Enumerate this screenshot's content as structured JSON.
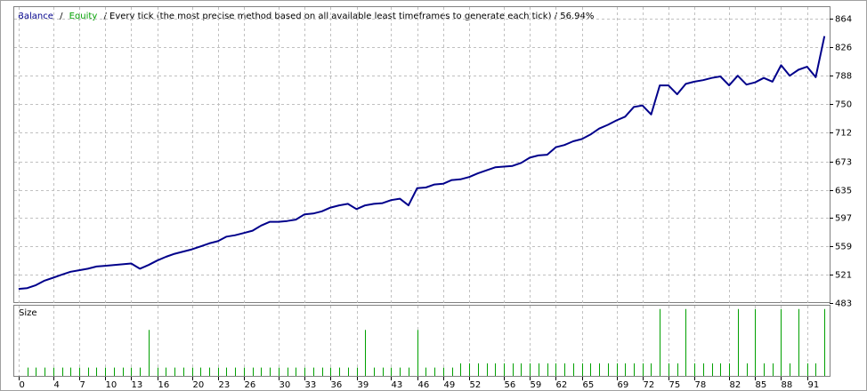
{
  "chart_data": [
    {
      "type": "line",
      "legend": {
        "separator": "/",
        "extra": {
          "name": "Equity",
          "color": "#00a000"
        }
      },
      "subtitle": "/ Every tick (the most precise method based on all available least timeframes to generate each tick) / 56.94%",
      "series": [
        {
          "name": "Balance",
          "color": "#00008b",
          "values": [
            502,
            503,
            507,
            513,
            517,
            521,
            525,
            527,
            529,
            532,
            533,
            534,
            535,
            536,
            529,
            534,
            540,
            545,
            549,
            552,
            555,
            559,
            563,
            566,
            572,
            574,
            577,
            580,
            587,
            592,
            592,
            593,
            595,
            602,
            603,
            606,
            611,
            614,
            616,
            609,
            614,
            616,
            617,
            621,
            623,
            614,
            637,
            638,
            642,
            643,
            648,
            649,
            652,
            657,
            661,
            665,
            666,
            667,
            671,
            678,
            681,
            682,
            692,
            695,
            700,
            703,
            709,
            717,
            722,
            728,
            733,
            746,
            748,
            736,
            775,
            775,
            763,
            777,
            780,
            782,
            785,
            787,
            775,
            788,
            776,
            779,
            785,
            780,
            802,
            788,
            796,
            800,
            786,
            841
          ]
        }
      ],
      "x": [
        0,
        1,
        2,
        3,
        4,
        5,
        6,
        7,
        8,
        9,
        10,
        11,
        12,
        13,
        14,
        15,
        16,
        17,
        18,
        19,
        20,
        21,
        22,
        23,
        24,
        25,
        26,
        27,
        28,
        29,
        30,
        31,
        32,
        33,
        34,
        35,
        36,
        37,
        38,
        39,
        40,
        41,
        42,
        43,
        44,
        45,
        46,
        47,
        48,
        49,
        50,
        51,
        52,
        53,
        54,
        55,
        56,
        57,
        58,
        59,
        60,
        61,
        62,
        63,
        64,
        65,
        66,
        67,
        68,
        69,
        70,
        71,
        72,
        73,
        74,
        75,
        76,
        77,
        78,
        79,
        80,
        81,
        82,
        83,
        84,
        85,
        86,
        87,
        88,
        89,
        90,
        91,
        92,
        93
      ],
      "ylim": [
        483,
        880
      ],
      "yticks": [
        483,
        521,
        559,
        597,
        635,
        673,
        712,
        750,
        788,
        826,
        864
      ],
      "grid": true
    },
    {
      "type": "bar",
      "title": "Size",
      "color": "#00a000",
      "x": [
        1,
        2,
        3,
        4,
        5,
        6,
        7,
        8,
        9,
        10,
        11,
        12,
        13,
        14,
        15,
        16,
        17,
        18,
        19,
        20,
        21,
        22,
        23,
        24,
        25,
        26,
        27,
        28,
        29,
        30,
        31,
        32,
        33,
        34,
        35,
        36,
        37,
        38,
        39,
        40,
        41,
        42,
        43,
        44,
        45,
        46,
        47,
        48,
        49,
        50,
        51,
        52,
        53,
        54,
        55,
        56,
        57,
        58,
        59,
        60,
        61,
        62,
        63,
        64,
        65,
        66,
        67,
        68,
        69,
        70,
        71,
        72,
        73,
        74,
        75,
        76,
        77,
        78,
        79,
        80,
        81,
        82,
        83,
        84,
        85,
        86,
        87,
        88,
        89,
        90,
        91,
        92,
        93
      ],
      "values": [
        1,
        1,
        1,
        1,
        1,
        1,
        1,
        1,
        1,
        1,
        1,
        1,
        1,
        1,
        5.5,
        1,
        1,
        1,
        1,
        1,
        1,
        1,
        1,
        1,
        1,
        1,
        1,
        1,
        1,
        1,
        1,
        1,
        1,
        1,
        1,
        1,
        1,
        1,
        1,
        5.5,
        1,
        1,
        1,
        1,
        1,
        5.5,
        1,
        1,
        1,
        1,
        1.5,
        1.5,
        1.5,
        1.5,
        1.5,
        1.5,
        1.5,
        1.5,
        1.5,
        1.5,
        1.5,
        1.5,
        1.5,
        1.5,
        1.5,
        1.5,
        1.5,
        1.5,
        1.5,
        1.5,
        1.5,
        1.5,
        1.5,
        8,
        1.5,
        1.5,
        8,
        1.5,
        1.5,
        1.5,
        1.5,
        1.5,
        8,
        1.5,
        8,
        1.5,
        1.5,
        8,
        1.5,
        8,
        1.5,
        1.5,
        8
      ],
      "ylim": [
        0,
        8.4
      ],
      "xlim": [
        -0.5,
        93.6
      ],
      "xticks": [
        0,
        4,
        7,
        10,
        13,
        16,
        20,
        23,
        26,
        30,
        33,
        36,
        39,
        43,
        46,
        49,
        52,
        56,
        59,
        62,
        65,
        69,
        72,
        75,
        78,
        82,
        85,
        88,
        91
      ]
    }
  ]
}
